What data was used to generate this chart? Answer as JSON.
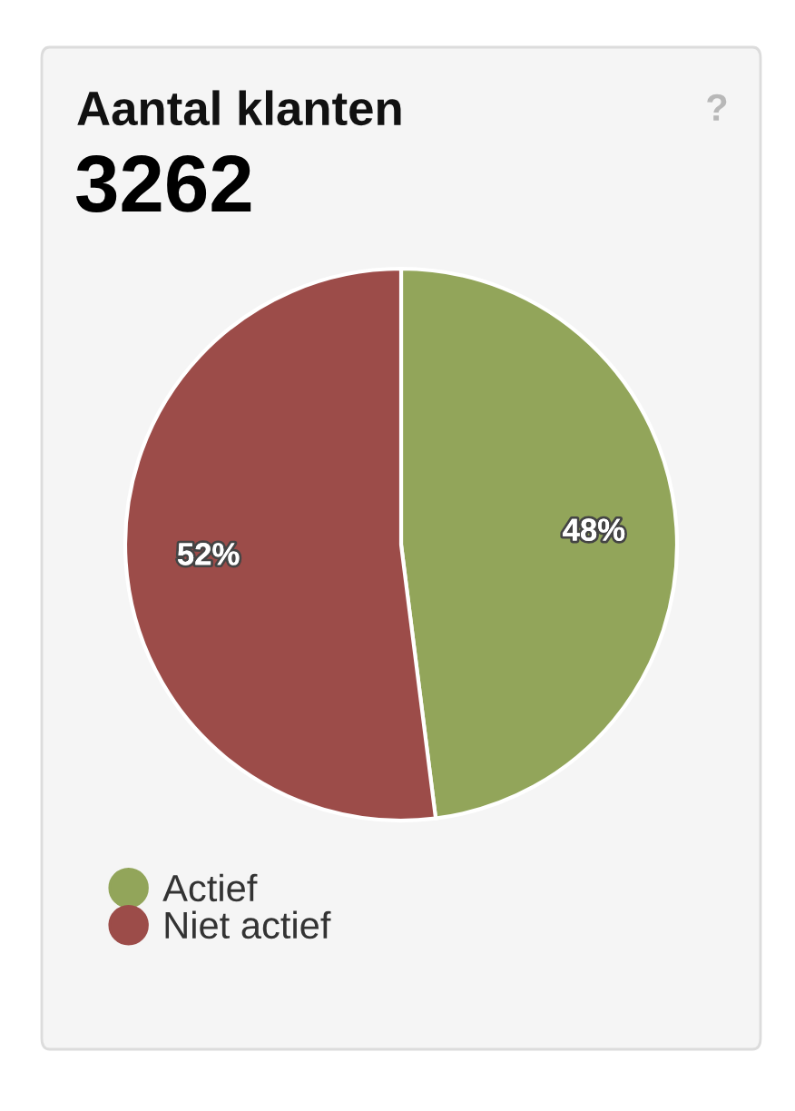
{
  "chart_data": {
    "type": "pie",
    "title": "Aantal klanten",
    "subtitle": "3262",
    "categories": [
      "Actief",
      "Niet actief"
    ],
    "values": [
      48,
      52
    ],
    "colors": [
      "#92a55a",
      "#9c4c49"
    ],
    "value_labels": [
      "48%",
      "52%"
    ],
    "legend": "bottom left",
    "annotations": [
      "?"
    ]
  }
}
